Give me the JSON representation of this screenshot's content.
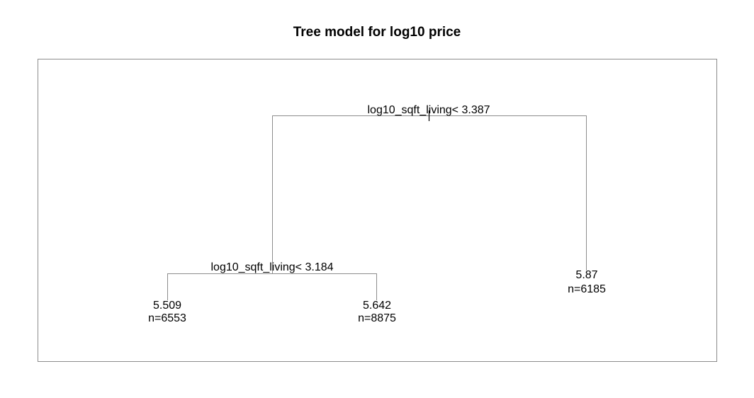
{
  "title": "Tree model for log10 price",
  "tree": {
    "splits": [
      {
        "id": "root",
        "label": "log10_sqft_living< 3.387"
      },
      {
        "id": "left",
        "label": "log10_sqft_living< 3.184"
      }
    ],
    "leaves": [
      {
        "id": "leaf-left-left",
        "value": "5.509",
        "n": "n=6553"
      },
      {
        "id": "leaf-left-right",
        "value": "5.642",
        "n": "n=8875"
      },
      {
        "id": "leaf-right",
        "value": "5.87",
        "n": "n=6185"
      }
    ]
  },
  "colors": {
    "branch": "#8c8c8c",
    "frame": "#8c8c8c",
    "text": "#000000"
  }
}
